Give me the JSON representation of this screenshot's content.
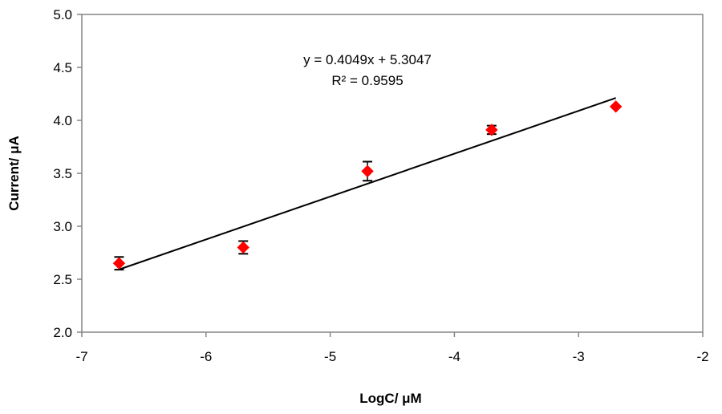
{
  "chart_data": {
    "type": "scatter",
    "xlabel": "LogC/ μM",
    "ylabel": "Current/ μA",
    "xlim": [
      -7,
      -2
    ],
    "ylim": [
      2.0,
      5.0
    ],
    "x_ticks": [
      "-7",
      "-6",
      "-5",
      "-4",
      "-3",
      "-2"
    ],
    "y_ticks": [
      "2.0",
      "2.5",
      "3.0",
      "3.5",
      "4.0",
      "4.5",
      "5.0"
    ],
    "grid": false,
    "legend": "none",
    "marker_color": "#ff0000",
    "line_color": "#000000",
    "series": [
      {
        "x": [
          -6.7,
          -5.7,
          -4.7,
          -3.7,
          -2.7
        ],
        "y": [
          2.65,
          2.8,
          3.52,
          3.91,
          4.13
        ],
        "error": [
          0.06,
          0.06,
          0.09,
          0.04,
          0.0
        ]
      }
    ],
    "trendline": {
      "slope": 0.4049,
      "intercept": 5.3047,
      "x_range": [
        -6.7,
        -2.7
      ],
      "equation": "y = 0.4049x + 5.3047",
      "r2": "R² = 0.9595"
    }
  }
}
